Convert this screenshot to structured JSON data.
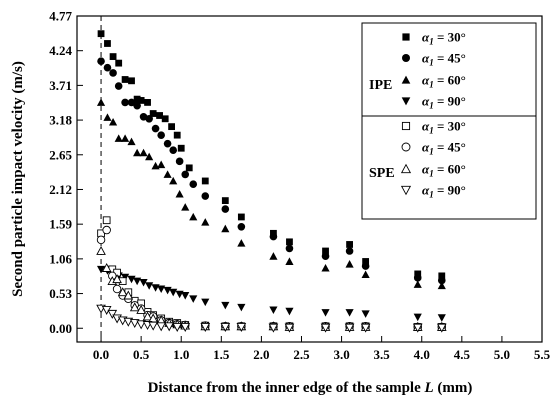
{
  "chart_data": {
    "type": "scatter",
    "title": "",
    "xlabel": "Distance from the inner edge of the sample ",
    "xlabel_var": "L",
    "xlabel_unit": " (mm)",
    "ylabel": "Second particle impact velocity (m/s)",
    "xlim": [
      -0.3,
      5.5
    ],
    "ylim": [
      -0.21,
      4.77
    ],
    "x_ticks": [
      "0.0",
      "0.5",
      "1.0",
      "1.5",
      "2.0",
      "2.5",
      "3.0",
      "3.5",
      "4.0",
      "4.5",
      "5.0",
      "5.5"
    ],
    "y_ticks": [
      "0.00",
      "0.53",
      "1.06",
      "1.59",
      "2.12",
      "2.65",
      "3.18",
      "3.71",
      "4.24",
      "4.77"
    ],
    "reference_line_x": 0,
    "legend": {
      "position": "top-right",
      "groups": [
        "IPE",
        "SPE"
      ],
      "symbol": "α",
      "subscript": "1"
    },
    "series": [
      {
        "name": "= 30°",
        "group": "IPE",
        "marker": "square",
        "filled": true,
        "x": [
          0.0,
          0.08,
          0.15,
          0.22,
          0.3,
          0.38,
          0.45,
          0.5,
          0.58,
          0.65,
          0.73,
          0.8,
          0.88,
          0.95,
          1.0,
          1.1,
          1.3,
          1.55,
          1.75,
          2.15,
          2.35,
          2.8,
          3.1,
          3.3,
          3.95,
          4.25
        ],
        "y": [
          4.5,
          4.35,
          4.15,
          4.05,
          3.8,
          3.78,
          3.5,
          3.48,
          3.45,
          3.28,
          3.25,
          3.2,
          3.08,
          2.95,
          2.75,
          2.45,
          2.25,
          1.95,
          1.7,
          1.45,
          1.32,
          1.18,
          1.28,
          1.02,
          0.83,
          0.8
        ]
      },
      {
        "name": "= 45°",
        "group": "IPE",
        "marker": "circle",
        "filled": true,
        "x": [
          0.0,
          0.08,
          0.15,
          0.22,
          0.3,
          0.38,
          0.45,
          0.53,
          0.6,
          0.68,
          0.75,
          0.83,
          0.9,
          0.98,
          1.05,
          1.15,
          1.3,
          1.55,
          1.75,
          2.15,
          2.35,
          2.8,
          3.1,
          3.3,
          3.95,
          4.25
        ],
        "y": [
          4.08,
          3.98,
          3.9,
          3.7,
          3.45,
          3.45,
          3.4,
          3.23,
          3.2,
          3.05,
          2.95,
          2.82,
          2.72,
          2.55,
          2.35,
          2.2,
          2.02,
          1.82,
          1.55,
          1.4,
          1.22,
          1.1,
          1.18,
          0.95,
          0.77,
          0.73
        ]
      },
      {
        "name": "= 60°",
        "group": "IPE",
        "marker": "triangle-up",
        "filled": true,
        "x": [
          0.0,
          0.08,
          0.15,
          0.22,
          0.3,
          0.38,
          0.45,
          0.53,
          0.6,
          0.68,
          0.75,
          0.83,
          0.9,
          0.98,
          1.05,
          1.15,
          1.3,
          1.55,
          1.75,
          2.15,
          2.35,
          2.8,
          3.1,
          3.3,
          3.95,
          4.25
        ],
        "y": [
          3.45,
          3.22,
          3.15,
          2.9,
          2.9,
          2.85,
          2.68,
          2.68,
          2.62,
          2.48,
          2.5,
          2.35,
          2.25,
          2.05,
          1.85,
          1.7,
          1.62,
          1.52,
          1.3,
          1.1,
          1.02,
          0.92,
          0.98,
          0.82,
          0.67,
          0.65
        ]
      },
      {
        "name": "= 90°",
        "group": "IPE",
        "marker": "triangle-down",
        "filled": true,
        "x": [
          0.0,
          0.08,
          0.15,
          0.22,
          0.3,
          0.38,
          0.45,
          0.53,
          0.6,
          0.68,
          0.75,
          0.83,
          0.9,
          0.98,
          1.05,
          1.15,
          1.3,
          1.55,
          1.75,
          2.15,
          2.35,
          2.8,
          3.1,
          3.3,
          3.95,
          4.25
        ],
        "y": [
          0.9,
          0.88,
          0.85,
          0.8,
          0.78,
          0.75,
          0.72,
          0.7,
          0.65,
          0.62,
          0.6,
          0.58,
          0.55,
          0.52,
          0.5,
          0.45,
          0.4,
          0.35,
          0.32,
          0.28,
          0.26,
          0.24,
          0.24,
          0.22,
          0.17,
          0.16
        ]
      },
      {
        "name": "= 30°",
        "group": "SPE",
        "marker": "square",
        "filled": false,
        "x": [
          0.0,
          0.07,
          0.14,
          0.2,
          0.27,
          0.34,
          0.42,
          0.5,
          0.58,
          0.65,
          0.75,
          0.85,
          0.95,
          1.05,
          1.3,
          1.55,
          1.75,
          2.15,
          2.35,
          2.8,
          3.1,
          3.3,
          3.95,
          4.25
        ],
        "y": [
          1.45,
          1.65,
          0.9,
          0.85,
          0.72,
          0.55,
          0.42,
          0.38,
          0.25,
          0.2,
          0.15,
          0.1,
          0.08,
          0.05,
          0.04,
          0.03,
          0.03,
          0.03,
          0.03,
          0.03,
          0.03,
          0.03,
          0.02,
          0.02
        ]
      },
      {
        "name": "= 45°",
        "group": "SPE",
        "marker": "circle",
        "filled": false,
        "x": [
          0.0,
          0.07,
          0.14,
          0.2,
          0.27,
          0.34,
          0.42,
          0.5,
          0.58,
          0.65,
          0.75,
          0.85,
          0.95,
          1.05,
          1.3,
          1.55,
          1.75,
          2.15,
          2.35,
          2.8,
          3.1,
          3.3,
          3.95,
          4.25
        ],
        "y": [
          1.35,
          1.5,
          0.8,
          0.6,
          0.5,
          0.45,
          0.35,
          0.3,
          0.2,
          0.18,
          0.12,
          0.08,
          0.06,
          0.05,
          0.04,
          0.03,
          0.03,
          0.03,
          0.03,
          0.03,
          0.03,
          0.03,
          0.02,
          0.02
        ]
      },
      {
        "name": "= 60°",
        "group": "SPE",
        "marker": "triangle-up",
        "filled": false,
        "x": [
          0.0,
          0.07,
          0.14,
          0.2,
          0.27,
          0.34,
          0.42,
          0.5,
          0.58,
          0.65,
          0.75,
          0.85,
          0.95,
          1.05,
          1.3,
          1.55,
          1.75,
          2.15,
          2.35,
          2.8,
          3.1,
          3.3,
          3.95,
          4.25
        ],
        "y": [
          1.18,
          0.92,
          0.72,
          0.75,
          0.55,
          0.5,
          0.32,
          0.28,
          0.18,
          0.15,
          0.12,
          0.08,
          0.06,
          0.04,
          0.03,
          0.03,
          0.03,
          0.03,
          0.02,
          0.02,
          0.02,
          0.02,
          0.02,
          0.02
        ]
      },
      {
        "name": "= 90°",
        "group": "SPE",
        "marker": "triangle-down",
        "filled": false,
        "x": [
          0.0,
          0.07,
          0.14,
          0.2,
          0.27,
          0.34,
          0.42,
          0.5,
          0.58,
          0.65,
          0.75,
          0.85,
          0.95,
          1.05,
          1.3,
          1.55,
          1.75,
          2.15,
          2.35,
          2.8,
          3.1,
          3.3,
          3.95,
          4.25
        ],
        "y": [
          0.3,
          0.28,
          0.22,
          0.15,
          0.12,
          0.1,
          0.08,
          0.06,
          0.05,
          0.04,
          0.03,
          0.03,
          0.02,
          0.02,
          0.02,
          0.02,
          0.02,
          0.01,
          0.01,
          0.01,
          0.01,
          0.01,
          0.01,
          0.01
        ]
      }
    ]
  }
}
